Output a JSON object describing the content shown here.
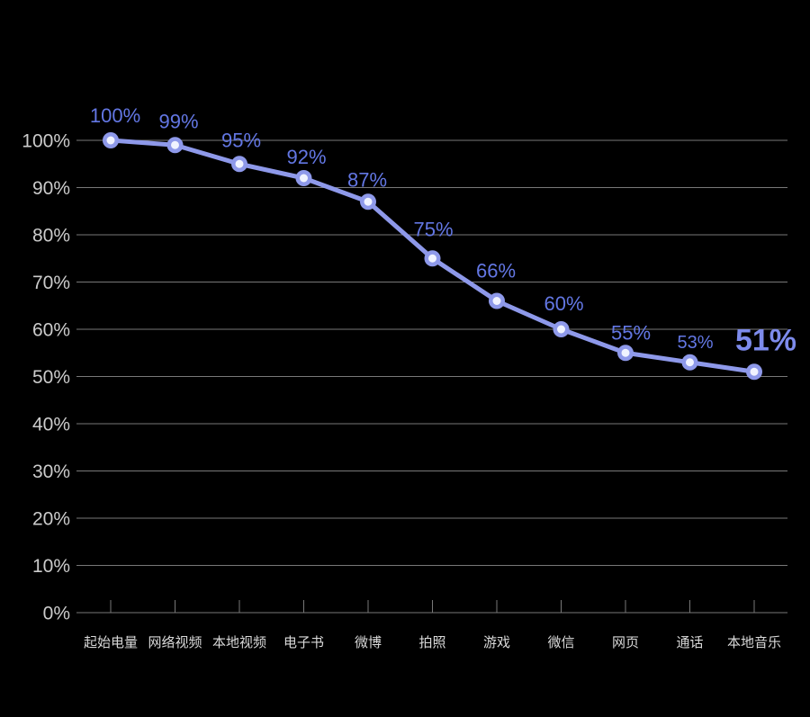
{
  "chart_data": {
    "type": "line",
    "categories": [
      "起始电量",
      "网络视频",
      "本地视频",
      "电子书",
      "微博",
      "拍照",
      "游戏",
      "微信",
      "网页",
      "通话",
      "本地音乐"
    ],
    "values": [
      100,
      99,
      95,
      92,
      87,
      75,
      66,
      60,
      55,
      53,
      51
    ],
    "point_labels": [
      "100%",
      "99%",
      "95%",
      "92%",
      "87%",
      "75%",
      "66%",
      "60%",
      "55%",
      "53%",
      "51%"
    ],
    "emphasized_point_label": "51%",
    "title": "",
    "xlabel": "",
    "ylabel": "",
    "ylim": [
      0,
      100
    ],
    "y_tick_step": 10,
    "y_tick_labels": [
      "0%",
      "10%",
      "20%",
      "30%",
      "40%",
      "50%",
      "60%",
      "70%",
      "80%",
      "90%",
      "100%"
    ],
    "grid": true,
    "legend": false,
    "colors": {
      "background": "#000000",
      "line": "#8E99EA",
      "marker_ring": "#8E99EA",
      "marker_center": "#F0F3FF",
      "data_label": "#6377E4",
      "emphasized_label": "#7D8BEC",
      "y_axis_text": "#CBCBCB",
      "x_axis_text": "#D9D9D9",
      "gridline": "#787878"
    }
  }
}
